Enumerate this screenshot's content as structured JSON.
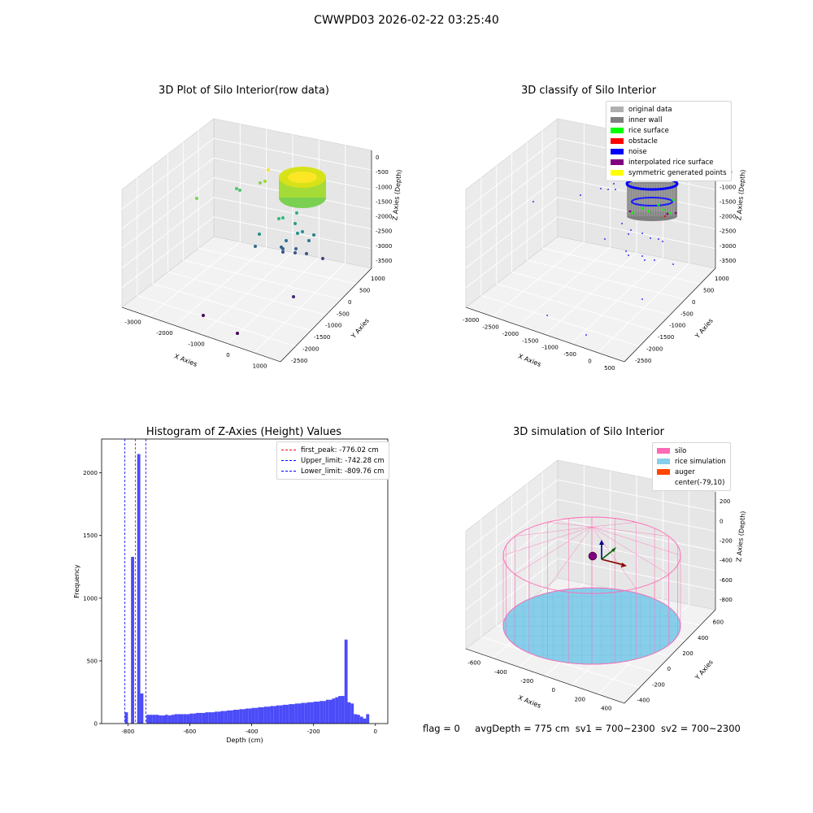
{
  "page": {
    "suptitle": "CWWPD03 2026-02-22 03:25:40"
  },
  "panels": {
    "p1": {
      "title": "3D Plot of Silo Interior(row data)",
      "xlabel": "X Axies",
      "ylabel": "Y Axies",
      "zlabel": "Z Axies (Depth)",
      "xticks": [
        "-3000",
        "-2000",
        "-1000",
        "0",
        "1000"
      ],
      "yticks": [
        "1000",
        "500",
        "0",
        "-500",
        "-1000",
        "-1500",
        "-2000",
        "-2500"
      ],
      "zticks": [
        "0",
        "-500",
        "-1000",
        "-1500",
        "-2000",
        "-2500",
        "-3000",
        "-3500"
      ]
    },
    "p2": {
      "title": "3D classify of Silo Interior",
      "xlabel": "X Axies",
      "ylabel": "Y Axies",
      "zlabel": "Z Axies (Depth)",
      "xticks": [
        "-3000",
        "-2500",
        "-2000",
        "-1500",
        "-1000",
        "-500",
        "0",
        "500"
      ],
      "yticks": [
        "1000",
        "500",
        "0",
        "-500",
        "-1000",
        "-1500",
        "-2000",
        "-2500"
      ],
      "zticks": [
        "0",
        "-500",
        "-1000",
        "-1500",
        "-2000",
        "-2500",
        "-3000",
        "-3500"
      ],
      "legend": [
        {
          "label": "original data",
          "color": "#b0b0b0"
        },
        {
          "label": "inner wall",
          "color": "#808080"
        },
        {
          "label": "rice surface",
          "color": "#00ff00"
        },
        {
          "label": "obstacle",
          "color": "#ff0000"
        },
        {
          "label": "noise",
          "color": "#0000ff"
        },
        {
          "label": "interpolated rice surface",
          "color": "#800080"
        },
        {
          "label": "symmetric generated points",
          "color": "#ffff00"
        }
      ]
    },
    "p3": {
      "title": "Histogram of Z-Axies (Height) Values",
      "legend": [
        {
          "label": "first_peak: -776.02 cm",
          "color": "#ff0000"
        },
        {
          "label": "Upper_limit: -742.28 cm",
          "color": "#0000ff"
        },
        {
          "label": "Lower_limit: -809.76 cm",
          "color": "#0000ff"
        }
      ]
    },
    "p4": {
      "title": "3D simulation of Silo Interior",
      "xlabel": "X Axies",
      "ylabel": "Y Axies",
      "zlabel": "Z Axies (Depth)",
      "xticks": [
        "-600",
        "-400",
        "-200",
        "0",
        "200",
        "400"
      ],
      "yticks": [
        "600",
        "400",
        "200",
        "0",
        "-200",
        "-400"
      ],
      "zticks": [
        "200",
        "0",
        "-200",
        "-400",
        "-600",
        "-800"
      ],
      "legend": [
        {
          "label": "silo",
          "color": "#ff69b4"
        },
        {
          "label": "rice simulation",
          "color": "#87ceeb"
        },
        {
          "label": "auger",
          "color": "#ff4500"
        },
        {
          "label": "center(-79,10)",
          "color": ""
        }
      ]
    }
  },
  "chart_data": [
    {
      "type": "histogram",
      "title": "Histogram of Z-Axies (Height) Values",
      "xlabel": "Depth (cm)",
      "ylabel": "Frequency",
      "xlim": [
        -885,
        40
      ],
      "ylim": [
        0,
        2270
      ],
      "xticks": [
        -800,
        -600,
        -400,
        -200,
        0
      ],
      "yticks": [
        0,
        500,
        1000,
        1500,
        2000
      ],
      "bin_left_edges": [
        -820,
        -810,
        -800,
        -790,
        -780,
        -770,
        -760,
        -750,
        -740,
        -730,
        -720,
        -710,
        -700,
        -690,
        -680,
        -670,
        -660,
        -650,
        -640,
        -630,
        -620,
        -610,
        -600,
        -590,
        -580,
        -570,
        -560,
        -550,
        -540,
        -530,
        -520,
        -510,
        -500,
        -490,
        -480,
        -470,
        -460,
        -450,
        -440,
        -430,
        -420,
        -410,
        -400,
        -390,
        -380,
        -370,
        -360,
        -350,
        -340,
        -330,
        -320,
        -310,
        -300,
        -290,
        -280,
        -270,
        -260,
        -250,
        -240,
        -230,
        -220,
        -210,
        -200,
        -190,
        -180,
        -170,
        -160,
        -150,
        -140,
        -130,
        -120,
        -110,
        -100,
        -90,
        -80,
        -70,
        -60,
        -50,
        -40,
        -30,
        -20,
        -10
      ],
      "bin_width": 10,
      "counts": [
        0,
        90,
        0,
        1330,
        0,
        2150,
        240,
        0,
        70,
        70,
        70,
        70,
        65,
        65,
        70,
        65,
        70,
        75,
        75,
        75,
        75,
        75,
        80,
        80,
        85,
        85,
        85,
        90,
        90,
        90,
        95,
        95,
        100,
        100,
        105,
        105,
        110,
        110,
        115,
        115,
        120,
        120,
        125,
        125,
        130,
        130,
        135,
        135,
        140,
        140,
        145,
        145,
        150,
        150,
        155,
        155,
        160,
        160,
        165,
        165,
        170,
        170,
        175,
        175,
        180,
        180,
        190,
        190,
        200,
        210,
        220,
        220,
        670,
        170,
        160,
        75,
        70,
        55,
        40,
        75,
        0,
        0
      ],
      "vlines": [
        {
          "x": -776.02,
          "label": "first_peak: -776.02 cm",
          "color": "#ff0000"
        },
        {
          "x": -742.28,
          "label": "Upper_limit: -742.28 cm",
          "color": "#0000ff"
        },
        {
          "x": -809.76,
          "label": "Lower_limit: -809.76 cm",
          "color": "#0000ff"
        }
      ],
      "bar_color": "#4b4bf9",
      "legend": "top-right"
    }
  ],
  "footer": {
    "flag": "flag = 0",
    "avg": "avgDepth = 775 cm",
    "sv1": "sv1 = 700~2300",
    "sv2": "sv2 = 700~2300"
  }
}
